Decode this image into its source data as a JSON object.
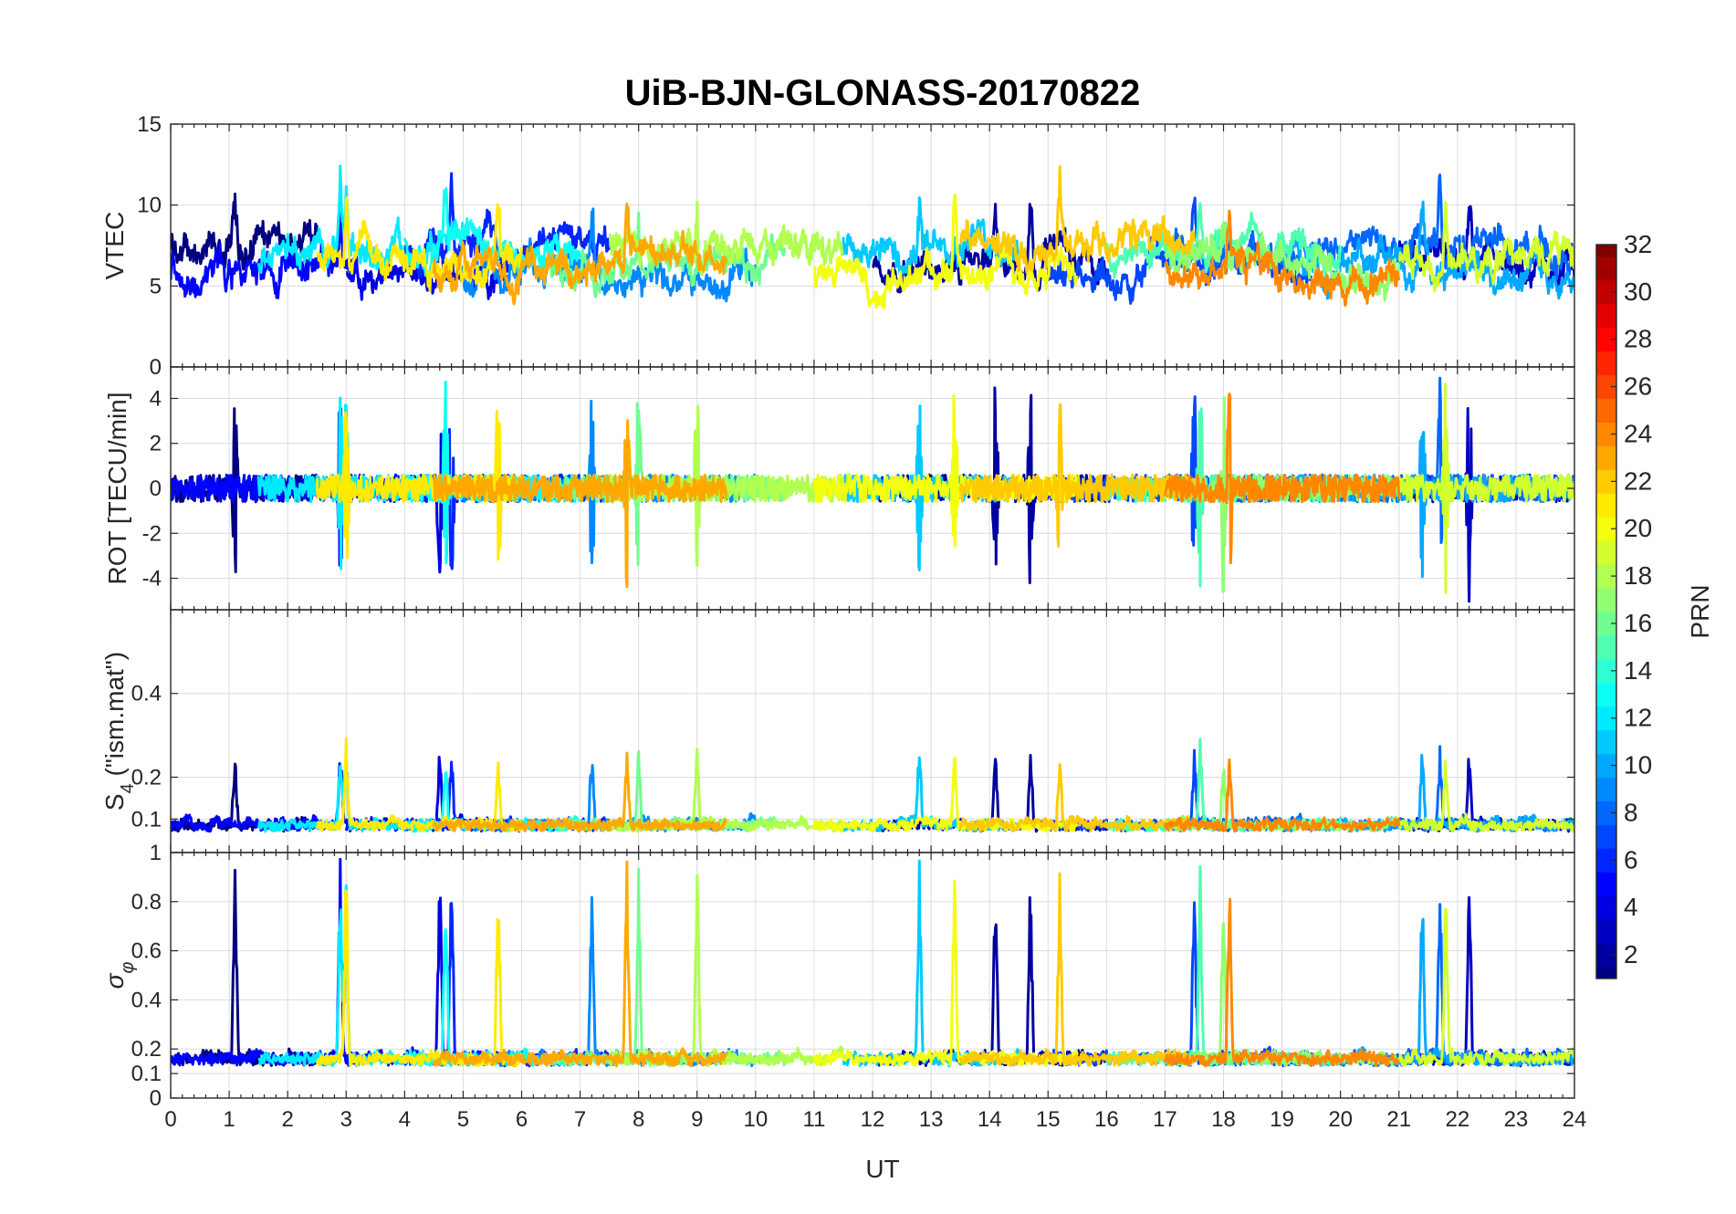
{
  "chart_data": {
    "type": "line",
    "title": "UiB-BJN-GLONASS-20170822",
    "xlabel": "UT",
    "xlim": [
      0,
      24
    ],
    "xticks": [
      "0",
      "1",
      "2",
      "3",
      "4",
      "5",
      "6",
      "7",
      "8",
      "9",
      "10",
      "11",
      "12",
      "13",
      "14",
      "15",
      "16",
      "17",
      "18",
      "19",
      "20",
      "21",
      "22",
      "23",
      "24"
    ],
    "panels": [
      {
        "id": "vtec",
        "ylabel": "VTEC",
        "ylim": [
          0,
          15
        ],
        "yticks": [
          {
            "v": 0,
            "t": "0"
          },
          {
            "v": 5,
            "t": "5"
          },
          {
            "v": 10,
            "t": "10"
          },
          {
            "v": 15,
            "t": "15"
          }
        ],
        "baseline": 6.5,
        "noise": 0.9,
        "spike": 4.5
      },
      {
        "id": "rot",
        "ylabel": "ROT [TECU/min]",
        "ylim": [
          -5.4,
          5.4
        ],
        "yticks": [
          {
            "v": -4,
            "t": "-4"
          },
          {
            "v": -2,
            "t": "-2"
          },
          {
            "v": 0,
            "t": "0"
          },
          {
            "v": 2,
            "t": "2"
          },
          {
            "v": 4,
            "t": "4"
          }
        ],
        "baseline": 0,
        "noise": 0.6,
        "spike": 5.2
      },
      {
        "id": "s4",
        "ylabel": "S4 (\"ism.mat\")",
        "ylabel_main": "S",
        "ylabel_sub": "4",
        "ylabel_rest": " (\"ism.mat\")",
        "ylim": [
          0.02,
          0.6
        ],
        "yticks": [
          {
            "v": 0.1,
            "t": "0.1"
          },
          {
            "v": 0.2,
            "t": "0.2"
          },
          {
            "v": 0.4,
            "t": "0.4"
          }
        ],
        "baseline": 0.07,
        "noise": 0.02,
        "spike": 0.2
      },
      {
        "id": "sigma",
        "ylabel": "σ φ",
        "ylabel_main": "σ",
        "ylabel_sub": "φ",
        "ylim": [
          0,
          1
        ],
        "yticks": [
          {
            "v": 0,
            "t": "0"
          },
          {
            "v": 0.1,
            "t": "0.1"
          },
          {
            "v": 0.2,
            "t": "0.2"
          },
          {
            "v": 0.4,
            "t": "0.4"
          },
          {
            "v": 0.6,
            "t": "0.6"
          },
          {
            "v": 0.8,
            "t": "0.8"
          },
          {
            "v": 1,
            "t": "1"
          }
        ],
        "baseline": 0.13,
        "noise": 0.04,
        "spike": 0.85
      }
    ],
    "series": [
      {
        "prn": 1,
        "start": 0.0,
        "end": 2.5,
        "spike_times": [
          1.1
        ]
      },
      {
        "prn": 2,
        "start": 12.0,
        "end": 16.0,
        "spike_times": [
          14.1,
          14.7
        ]
      },
      {
        "prn": 3,
        "start": 21.0,
        "end": 24.0,
        "spike_times": [
          22.2
        ]
      },
      {
        "prn": 4,
        "start": 3.0,
        "end": 6.0,
        "spike_times": [
          4.6
        ]
      },
      {
        "prn": 5,
        "start": 0.0,
        "end": 3.2,
        "spike_times": [
          2.9
        ]
      },
      {
        "prn": 6,
        "start": 4.0,
        "end": 7.5,
        "spike_times": [
          4.8
        ]
      },
      {
        "prn": 7,
        "start": 15.0,
        "end": 19.5,
        "spike_times": [
          17.5
        ]
      },
      {
        "prn": 8,
        "start": 17.0,
        "end": 24.0,
        "spike_times": [
          21.7
        ]
      },
      {
        "prn": 9,
        "start": 5.0,
        "end": 10.0,
        "spike_times": [
          7.2
        ]
      },
      {
        "prn": 10,
        "start": 19.0,
        "end": 24.0,
        "spike_times": [
          21.4
        ]
      },
      {
        "prn": 11,
        "start": 11.5,
        "end": 14.5,
        "spike_times": [
          12.8
        ]
      },
      {
        "prn": 12,
        "start": 1.5,
        "end": 5.0,
        "spike_times": [
          2.9,
          3.0
        ]
      },
      {
        "prn": 13,
        "start": 4.0,
        "end": 7.0,
        "spike_times": [
          4.7
        ]
      },
      {
        "prn": 15,
        "start": 16.0,
        "end": 20.0,
        "spike_times": [
          17.6
        ]
      },
      {
        "prn": 16,
        "start": 6.5,
        "end": 10.5,
        "spike_times": [
          8.0
        ]
      },
      {
        "prn": 17,
        "start": 17.0,
        "end": 21.0,
        "spike_times": [
          18.0
        ]
      },
      {
        "prn": 18,
        "start": 7.5,
        "end": 11.5,
        "spike_times": [
          9.0
        ]
      },
      {
        "prn": 19,
        "start": 21.0,
        "end": 24.0,
        "spike_times": [
          21.8
        ]
      },
      {
        "prn": 20,
        "start": 11.0,
        "end": 15.5,
        "spike_times": [
          13.4
        ]
      },
      {
        "prn": 21,
        "start": 2.5,
        "end": 6.0,
        "spike_times": [
          3.0,
          5.6
        ]
      },
      {
        "prn": 22,
        "start": 13.5,
        "end": 17.5,
        "spike_times": [
          15.2
        ]
      },
      {
        "prn": 23,
        "start": 4.5,
        "end": 9.5,
        "spike_times": [
          7.8
        ]
      },
      {
        "prn": 24,
        "start": 17.0,
        "end": 21.0,
        "spike_times": [
          18.1
        ]
      }
    ],
    "colorbar": {
      "label": "PRN",
      "min": 1,
      "max": 32,
      "ticks": [
        "2",
        "4",
        "6",
        "8",
        "10",
        "12",
        "14",
        "16",
        "18",
        "20",
        "22",
        "24",
        "26",
        "28",
        "30",
        "32"
      ],
      "colormap": "jet"
    }
  }
}
